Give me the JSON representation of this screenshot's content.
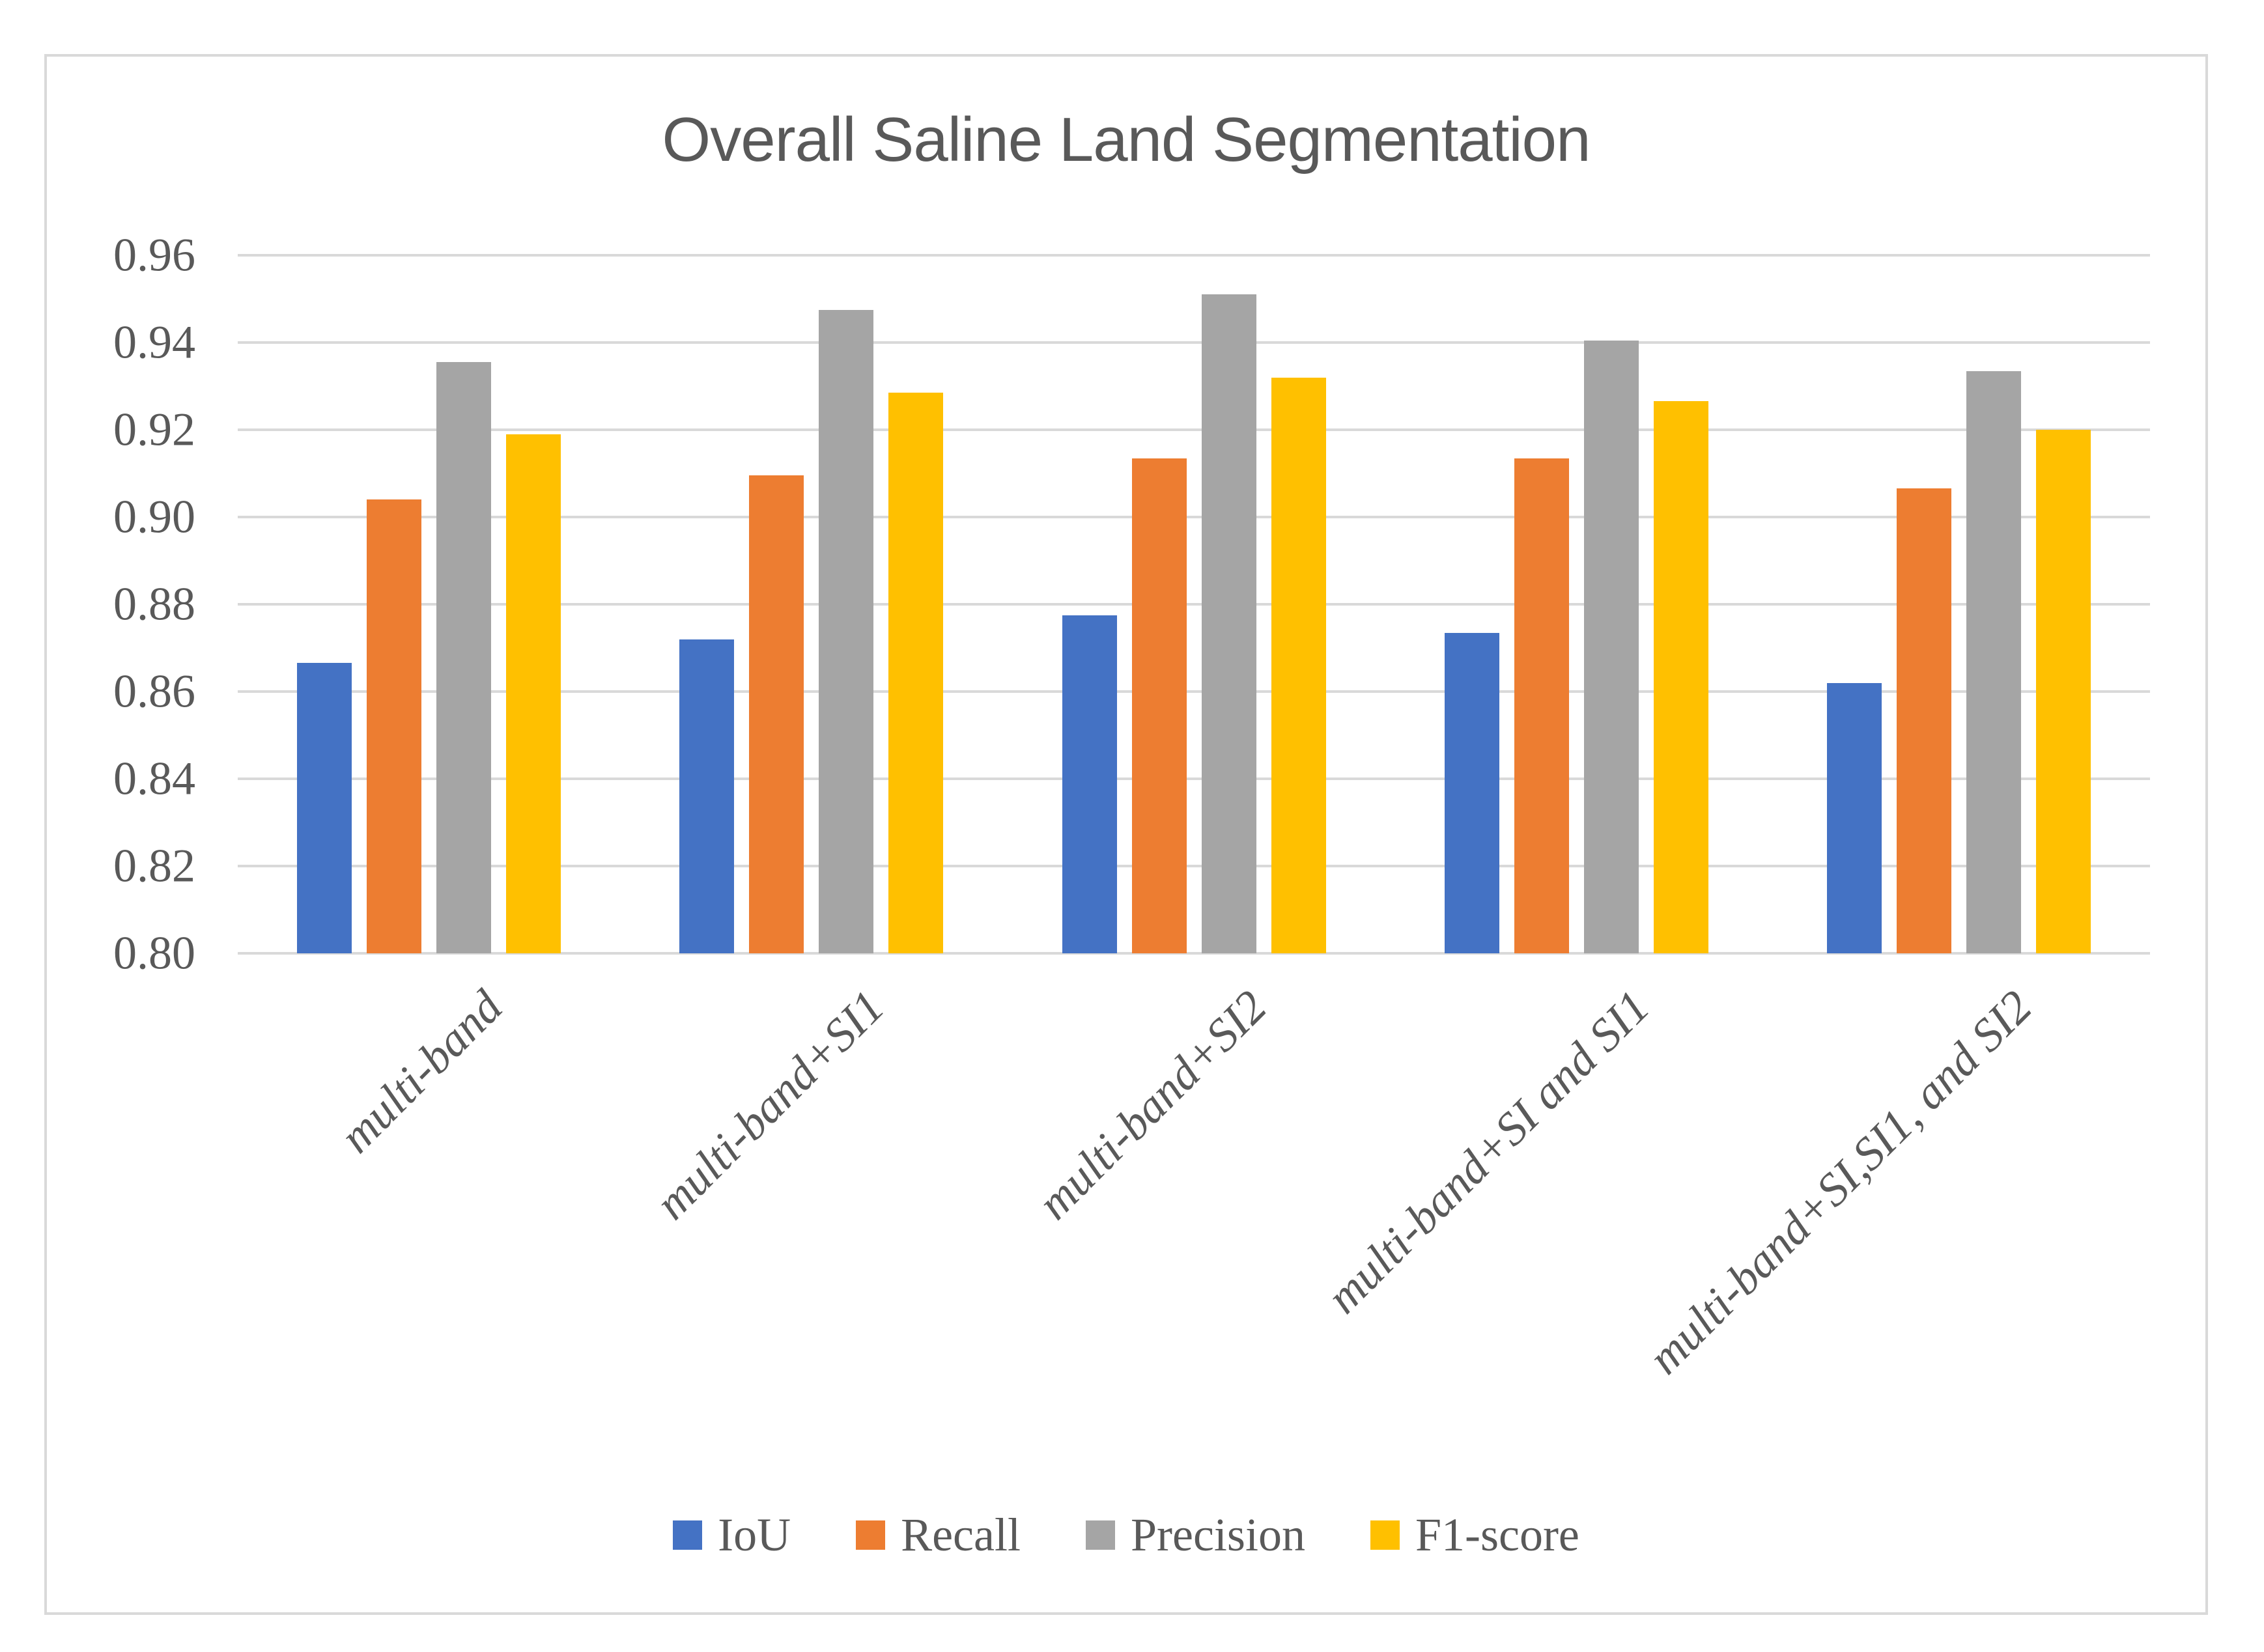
{
  "chart_data": {
    "type": "bar",
    "title": "Overall Saline Land Segmentation",
    "categories": [
      "multi-band",
      "multi-band+SI1",
      "multi-band+SI2",
      "multi-band+SI and SI1",
      "multi-band+SI,SI1, and SI2"
    ],
    "series": [
      {
        "name": "IoU",
        "color": "#4472C4",
        "values": [
          0.8665,
          0.872,
          0.8775,
          0.8735,
          0.862
        ]
      },
      {
        "name": "Recall",
        "color": "#ED7D31",
        "values": [
          0.904,
          0.9095,
          0.9135,
          0.9135,
          0.9065
        ]
      },
      {
        "name": "Precision",
        "color": "#A5A5A5",
        "values": [
          0.9355,
          0.9475,
          0.951,
          0.9405,
          0.9335
        ]
      },
      {
        "name": "F1-score",
        "color": "#FFC000",
        "values": [
          0.919,
          0.9285,
          0.932,
          0.9265,
          0.92
        ]
      }
    ],
    "y_axis": {
      "min": 0.8,
      "max": 0.96,
      "step": 0.02,
      "tick_labels": [
        "0.96",
        "0.94",
        "0.92",
        "0.90",
        "0.88",
        "0.86",
        "0.84",
        "0.82",
        "0.80"
      ]
    },
    "grid": true,
    "legend_position": "bottom",
    "colors": {
      "grid": "#D9D9D9",
      "frame_border": "#D9D9D9",
      "text": "#595959"
    }
  }
}
